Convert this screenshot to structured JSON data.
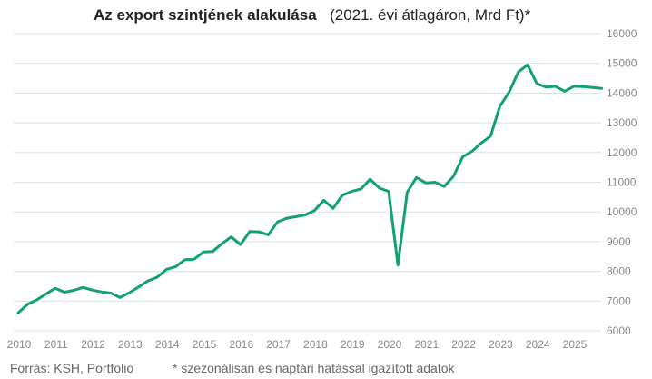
{
  "chart_data": {
    "type": "line",
    "title": "Az export szintjének alakulása",
    "subtitle": "(2021. évi átlagáron, Mrd Ft)*",
    "xlabel": "",
    "ylabel": "",
    "x_start": "2010Q1",
    "x_frequency": "quarterly",
    "x_tick_labels": [
      "2010",
      "2011",
      "2012",
      "2013",
      "2014",
      "2015",
      "2016",
      "2017",
      "2018",
      "2019",
      "2020",
      "2021",
      "2022",
      "2023",
      "2024",
      "2025"
    ],
    "y_ticks": [
      6000,
      7000,
      8000,
      9000,
      10000,
      11000,
      12000,
      13000,
      14000,
      15000,
      16000
    ],
    "ylim": [
      6000,
      16000
    ],
    "grid": true,
    "line_color": "#12a075",
    "series": [
      {
        "name": "Export",
        "values": [
          6600,
          6890,
          7040,
          7240,
          7430,
          7300,
          7360,
          7460,
          7370,
          7310,
          7270,
          7120,
          7280,
          7470,
          7680,
          7800,
          8060,
          8160,
          8390,
          8410,
          8650,
          8670,
          8930,
          9160,
          8900,
          9340,
          9330,
          9230,
          9660,
          9790,
          9840,
          9900,
          10050,
          10390,
          10120,
          10560,
          10690,
          10770,
          11100,
          10800,
          10690,
          8210,
          10660,
          11160,
          10980,
          11000,
          10860,
          11200,
          11860,
          12040,
          12320,
          12550,
          13550,
          14030,
          14710,
          14950,
          14320,
          14200,
          14230,
          14060,
          14230,
          14220,
          14190,
          14160
        ]
      }
    ]
  },
  "footer": {
    "source": "Forrás: KSH, Portfolio",
    "note": "* szezonálisan és naptári hatással igazított adatok"
  }
}
